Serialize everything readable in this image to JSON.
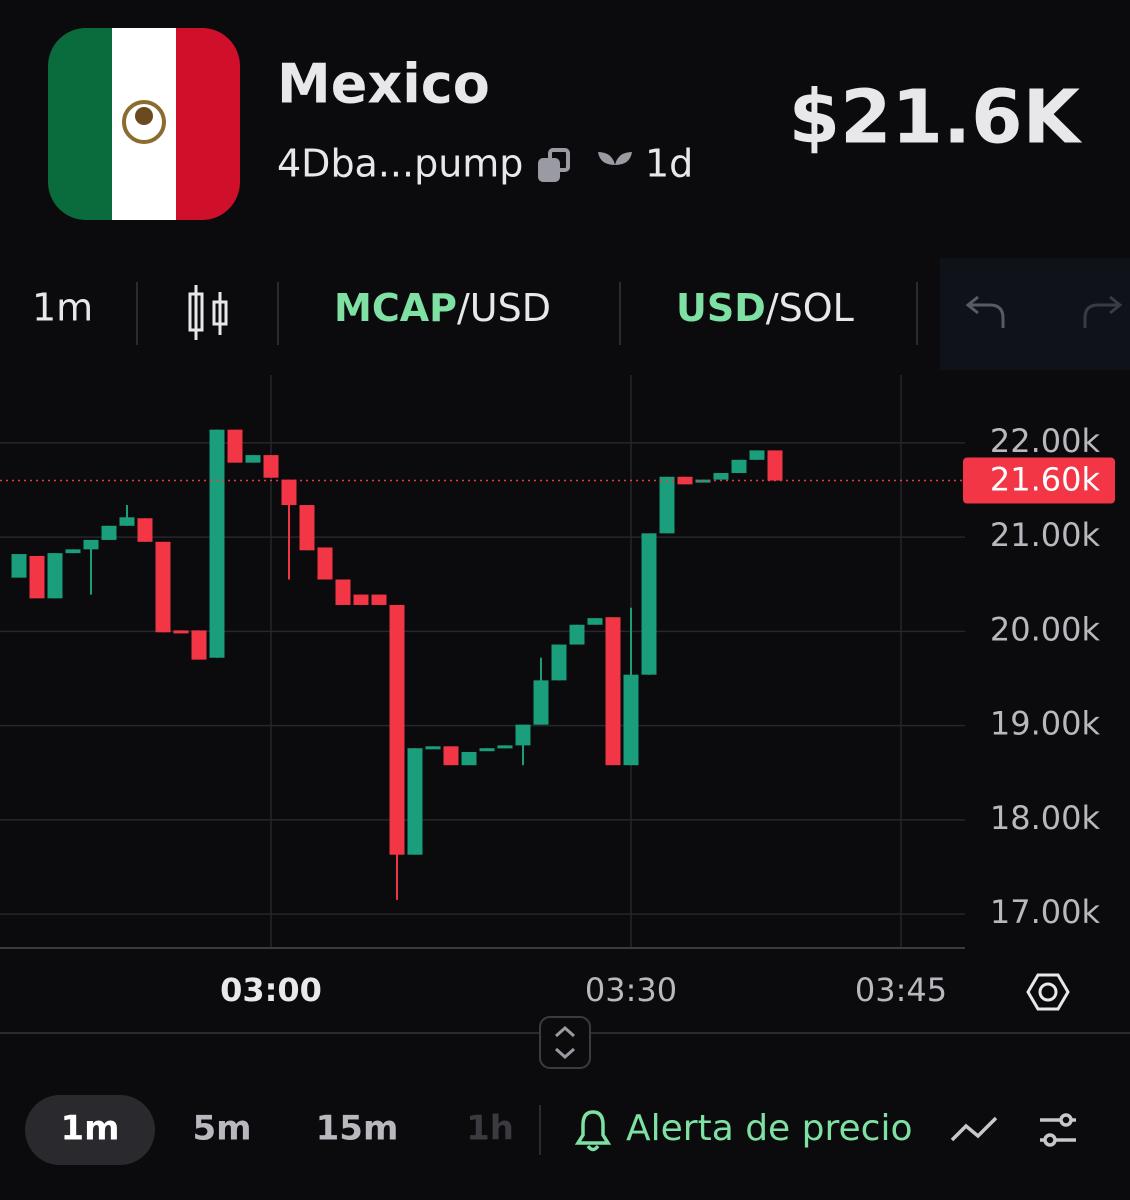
{
  "header": {
    "title": "Mexico",
    "address": "4Dba...pump",
    "age": "1d",
    "price": "$21.6K"
  },
  "toolbar": {
    "interval": "1m",
    "mcap": "MCAP",
    "mcap_unit": "/USD",
    "usd": "USD",
    "usd_unit": "/SOL"
  },
  "chart_data": {
    "type": "candlestick",
    "up_color": "#1a9e7b",
    "down_color": "#f23645",
    "categories": [
      null,
      null,
      null,
      null,
      null,
      null,
      null,
      null,
      null,
      null,
      null,
      null,
      null,
      null,
      "03:00",
      null,
      null,
      null,
      null,
      null,
      null,
      null,
      null,
      null,
      null,
      null,
      null,
      null,
      null,
      null,
      null,
      null,
      null,
      null,
      "03:30",
      null,
      null,
      null,
      null,
      null,
      null,
      null,
      null,
      null,
      null,
      null,
      null,
      null,
      null,
      "03:45"
    ],
    "open": [
      20570,
      20800,
      20350,
      20830,
      20870,
      20970,
      21120,
      21200,
      20950,
      20010,
      20010,
      19720,
      22140,
      21790,
      21870,
      21610,
      21340,
      20890,
      20550,
      20390,
      20390,
      20280,
      17630,
      18760,
      18780,
      18580,
      18740,
      18760,
      18790,
      19010,
      19480,
      19860,
      20070,
      20150,
      18580,
      19540,
      21040,
      21640,
      21580,
      21610,
      21680,
      21820,
      21920,
      null,
      null,
      null,
      null,
      null,
      null,
      null
    ],
    "high": [
      20820,
      20800,
      20830,
      20870,
      20970,
      21120,
      21340,
      21200,
      20950,
      20010,
      20010,
      22140,
      22140,
      21870,
      21870,
      21610,
      21340,
      20890,
      20550,
      20390,
      20390,
      20280,
      18760,
      18780,
      18780,
      18720,
      18760,
      18790,
      19010,
      19720,
      19860,
      20070,
      20140,
      20150,
      20250,
      21040,
      21640,
      21640,
      21610,
      21680,
      21820,
      21920,
      21920,
      null,
      null,
      null,
      null,
      null,
      null,
      null
    ],
    "low": [
      20570,
      20350,
      20350,
      20830,
      20390,
      20970,
      21120,
      20950,
      19990,
      19990,
      19700,
      19720,
      21790,
      21790,
      21630,
      20550,
      20860,
      20550,
      20280,
      20280,
      20280,
      17150,
      17630,
      18760,
      18580,
      18580,
      18740,
      18760,
      18580,
      19010,
      19480,
      19860,
      20070,
      18580,
      18580,
      19540,
      21040,
      21560,
      21580,
      21610,
      21680,
      21820,
      21600,
      null,
      null,
      null,
      null,
      null,
      null,
      null
    ],
    "close": [
      20820,
      20350,
      20830,
      20870,
      20970,
      21120,
      21210,
      20950,
      19990,
      19990,
      19700,
      22140,
      21790,
      21870,
      21630,
      21340,
      20860,
      20550,
      20280,
      20280,
      20280,
      17630,
      18760,
      18780,
      18580,
      18720,
      18760,
      18790,
      19010,
      19480,
      19860,
      20070,
      20140,
      18580,
      19540,
      21040,
      21640,
      21560,
      21610,
      21680,
      21820,
      21920,
      21600,
      null,
      null,
      null,
      null,
      null,
      null,
      null
    ],
    "ylim": [
      16640,
      22720
    ],
    "yticks": [
      {
        "value": 22000,
        "label": "22.00k"
      },
      {
        "value": 21000,
        "label": "21.00k"
      },
      {
        "value": 20000,
        "label": "20.00k"
      },
      {
        "value": 19000,
        "label": "19.00k"
      },
      {
        "value": 18000,
        "label": "18.00k"
      },
      {
        "value": 17000,
        "label": "17.00k"
      }
    ],
    "last_price": 21600,
    "last_price_label": "21.60k",
    "grid": true
  },
  "footer": {
    "intervals": [
      "1m",
      "5m",
      "15m",
      "1h"
    ],
    "alert": "Alerta de precio"
  }
}
